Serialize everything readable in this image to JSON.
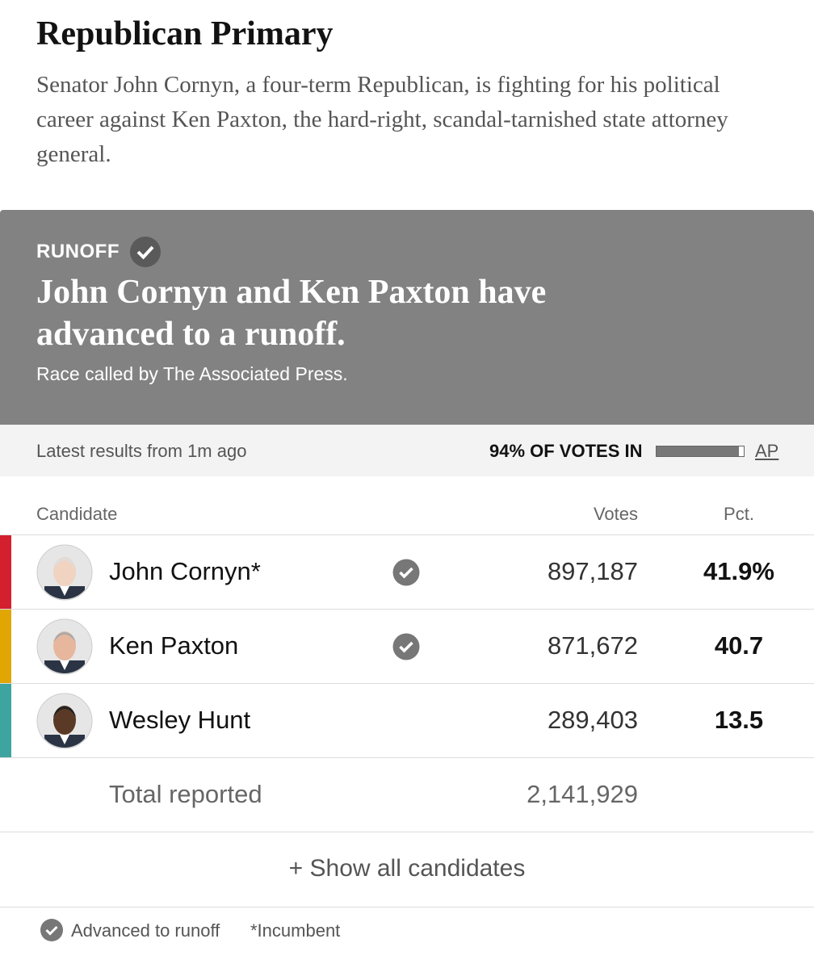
{
  "header": {
    "title": "Republican Primary",
    "description": "Senator John Cornyn, a four-term Republican, is fighting for his political career against Ken Paxton, the hard-right, scandal-tarnished state attorney general."
  },
  "banner": {
    "label": "RUNOFF",
    "headline": "John Cornyn and Ken Paxton have advanced to a runoff.",
    "source": "Race called by The Associated Press."
  },
  "status": {
    "updated": "Latest results from 1m ago",
    "reporting": "94% OF VOTES IN",
    "reporting_percent": 94,
    "source": "AP"
  },
  "table": {
    "columns": [
      "Candidate",
      "Votes",
      "Pct."
    ],
    "rows": [
      {
        "name": "John Cornyn*",
        "votes": "897,187",
        "pct": "41.9%",
        "color": "#d31f2e",
        "advanced": true
      },
      {
        "name": "Ken Paxton",
        "votes": "871,672",
        "pct": "40.7",
        "color": "#e1a603",
        "advanced": true
      },
      {
        "name": "Wesley Hunt",
        "votes": "289,403",
        "pct": "13.5",
        "color": "#3ea49f",
        "advanced": false
      }
    ],
    "total": {
      "label": "Total reported",
      "votes": "2,141,929"
    }
  },
  "show_all": "+ Show all candidates",
  "legend": {
    "advanced": "Advanced to runoff",
    "incumbent": "*Incumbent"
  }
}
